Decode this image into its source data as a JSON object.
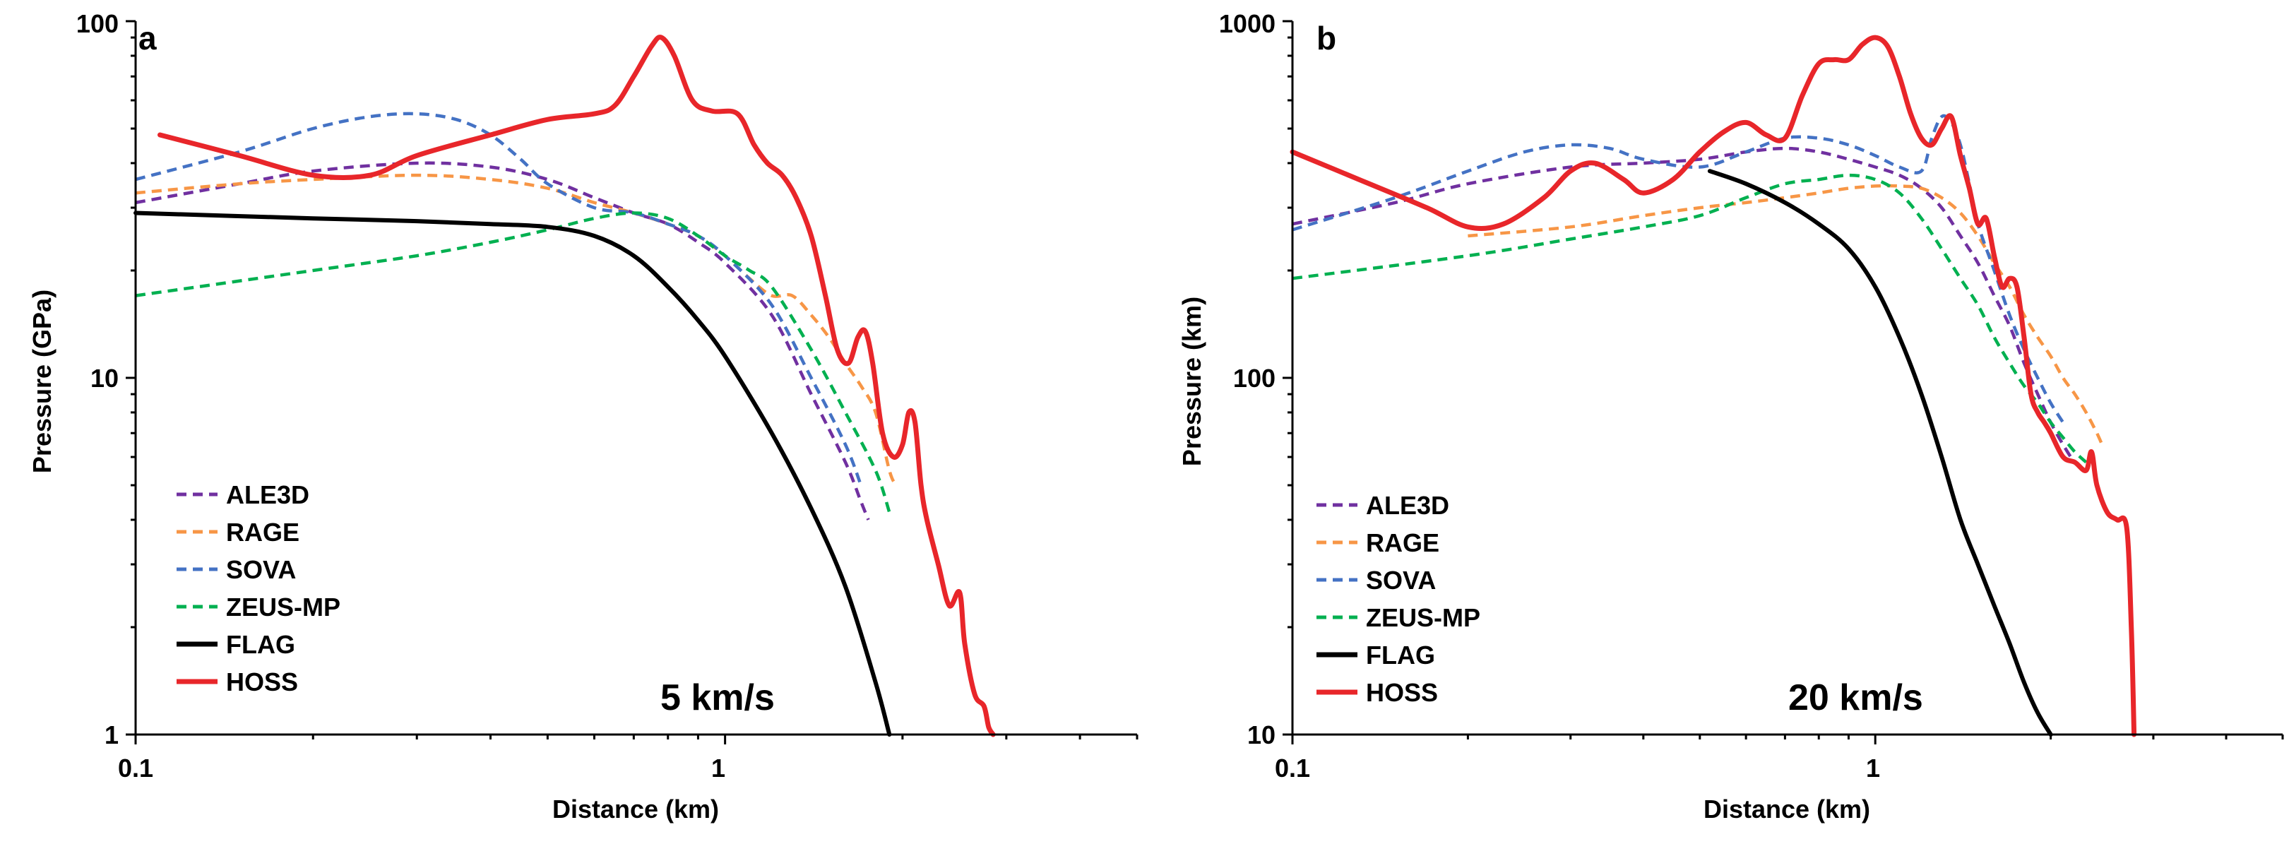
{
  "chart_data": [
    {
      "type": "line",
      "panel_label": "a",
      "annotation": "5 km/s",
      "xlabel": "Distance (km)",
      "ylabel": "Pressure (GPa)",
      "xscale": "log",
      "yscale": "log",
      "xlim": [
        0.1,
        5.0
      ],
      "ylim": [
        1,
        100
      ],
      "x_tick_labels": [
        "0.1",
        "1"
      ],
      "y_tick_labels": [
        "1",
        "10",
        "100"
      ],
      "legend_position": "bottom-left",
      "series": [
        {
          "name": "ALE3D",
          "color": "#7030A0",
          "dash": "dashed",
          "x": [
            0.1,
            0.15,
            0.2,
            0.3,
            0.4,
            0.5,
            0.6,
            0.7,
            0.8,
            0.9,
            1.0,
            1.2,
            1.4,
            1.6,
            1.7,
            1.75
          ],
          "y": [
            31,
            35,
            38,
            40,
            39,
            36,
            32,
            29,
            27,
            24,
            21,
            15,
            9,
            5.8,
            4.5,
            4.0
          ]
        },
        {
          "name": "RAGE",
          "color": "#F79646",
          "dash": "dashed",
          "x": [
            0.1,
            0.15,
            0.2,
            0.3,
            0.4,
            0.5,
            0.6,
            0.7,
            0.8,
            0.9,
            1.0,
            1.1,
            1.2,
            1.3,
            1.4,
            1.5,
            1.6,
            1.7,
            1.8,
            1.9,
            1.95
          ],
          "y": [
            33,
            35,
            36,
            37,
            36,
            34,
            31,
            29,
            27,
            25,
            22,
            19,
            17,
            17,
            15,
            13,
            11,
            9.5,
            8,
            5.5,
            5.0
          ]
        },
        {
          "name": "SOVA",
          "color": "#4472C4",
          "dash": "dashed",
          "x": [
            0.1,
            0.15,
            0.2,
            0.25,
            0.3,
            0.35,
            0.4,
            0.45,
            0.5,
            0.6,
            0.7,
            0.8,
            0.9,
            1.0,
            1.2,
            1.4,
            1.6,
            1.7
          ],
          "y": [
            36,
            43,
            50,
            54,
            55,
            53,
            48,
            41,
            35,
            30,
            29,
            27,
            25,
            22,
            16,
            10,
            6.5,
            5.0
          ]
        },
        {
          "name": "ZEUS-MP",
          "color": "#00B050",
          "dash": "dashed",
          "x": [
            0.1,
            0.2,
            0.3,
            0.4,
            0.5,
            0.6,
            0.7,
            0.8,
            0.9,
            1.0,
            1.1,
            1.2,
            1.4,
            1.6,
            1.8,
            1.9
          ],
          "y": [
            17,
            20,
            22,
            24,
            26,
            28,
            29,
            28,
            25,
            22,
            20,
            18,
            12,
            8,
            5.5,
            4.2
          ]
        },
        {
          "name": "FLAG",
          "color": "#000000",
          "dash": "solid",
          "x": [
            0.1,
            0.2,
            0.3,
            0.4,
            0.5,
            0.6,
            0.7,
            0.8,
            0.9,
            1.0,
            1.2,
            1.4,
            1.6,
            1.8,
            1.9
          ],
          "y": [
            29,
            28,
            27.5,
            27,
            26.5,
            25,
            22,
            18,
            14.5,
            11.5,
            7,
            4.3,
            2.6,
            1.4,
            1.0
          ]
        },
        {
          "name": "HOSS",
          "color": "#E8262A",
          "dash": "solid",
          "x": [
            0.11,
            0.15,
            0.2,
            0.25,
            0.3,
            0.4,
            0.5,
            0.6,
            0.65,
            0.7,
            0.75,
            0.78,
            0.82,
            0.88,
            0.95,
            1.05,
            1.12,
            1.18,
            1.25,
            1.32,
            1.4,
            1.48,
            1.55,
            1.62,
            1.68,
            1.73,
            1.78,
            1.85,
            1.93,
            2.0,
            2.05,
            2.1,
            2.15,
            2.2,
            2.3,
            2.4,
            2.5,
            2.55,
            2.65,
            2.75,
            2.8,
            2.85
          ],
          "y": [
            48,
            42,
            37,
            37,
            42,
            48,
            53,
            55,
            58,
            70,
            85,
            90,
            80,
            60,
            56,
            55,
            45,
            40,
            37,
            32,
            25,
            17,
            12,
            11,
            13,
            13.5,
            11,
            7,
            6,
            6.5,
            8,
            7.5,
            5,
            4,
            3,
            2.3,
            2.5,
            1.8,
            1.3,
            1.2,
            1.05,
            1.0
          ]
        }
      ]
    },
    {
      "type": "line",
      "panel_label": "b",
      "annotation": "20 km/s",
      "xlabel": "Distance (km)",
      "ylabel": "Pressure (km)",
      "xscale": "log",
      "yscale": "log",
      "xlim": [
        0.1,
        5.0
      ],
      "ylim": [
        10,
        1000
      ],
      "x_tick_labels": [
        "0.1",
        "1"
      ],
      "y_tick_labels": [
        "10",
        "100",
        "1000"
      ],
      "legend_position": "bottom-left",
      "series": [
        {
          "name": "ALE3D",
          "color": "#7030A0",
          "dash": "dashed",
          "x": [
            0.1,
            0.15,
            0.2,
            0.3,
            0.4,
            0.5,
            0.6,
            0.7,
            0.8,
            0.9,
            1.0,
            1.1,
            1.2,
            1.3,
            1.4,
            1.5,
            1.6,
            1.7,
            1.8,
            1.9,
            2.0,
            2.1,
            2.2,
            2.3
          ],
          "y": [
            270,
            310,
            350,
            390,
            400,
            410,
            430,
            440,
            430,
            410,
            390,
            370,
            340,
            300,
            250,
            210,
            170,
            140,
            110,
            90,
            75,
            65,
            58,
            55
          ]
        },
        {
          "name": "RAGE",
          "color": "#F79646",
          "dash": "dashed",
          "x": [
            0.2,
            0.3,
            0.4,
            0.5,
            0.6,
            0.7,
            0.8,
            0.9,
            1.0,
            1.1,
            1.2,
            1.3,
            1.4,
            1.5,
            1.6,
            1.7,
            1.8,
            1.9,
            2.0,
            2.1,
            2.2,
            2.3,
            2.4,
            2.45
          ],
          "y": [
            250,
            265,
            285,
            300,
            310,
            320,
            330,
            340,
            345,
            345,
            340,
            320,
            290,
            250,
            210,
            180,
            150,
            130,
            115,
            100,
            90,
            80,
            70,
            65
          ]
        },
        {
          "name": "SOVA",
          "color": "#4472C4",
          "dash": "dashed",
          "x": [
            0.1,
            0.15,
            0.2,
            0.25,
            0.3,
            0.35,
            0.4,
            0.5,
            0.6,
            0.7,
            0.8,
            0.9,
            1.0,
            1.1,
            1.2,
            1.25,
            1.3,
            1.35,
            1.4,
            1.45,
            1.5,
            1.6,
            1.7,
            1.8,
            1.9,
            2.0,
            2.1
          ],
          "y": [
            260,
            320,
            380,
            430,
            450,
            440,
            410,
            390,
            430,
            470,
            470,
            450,
            420,
            390,
            380,
            470,
            540,
            520,
            450,
            350,
            270,
            200,
            150,
            120,
            100,
            85,
            75
          ]
        },
        {
          "name": "ZEUS-MP",
          "color": "#00B050",
          "dash": "dashed",
          "x": [
            0.1,
            0.2,
            0.3,
            0.4,
            0.5,
            0.6,
            0.7,
            0.8,
            0.9,
            1.0,
            1.1,
            1.2,
            1.3,
            1.4,
            1.5,
            1.6,
            1.7,
            1.8,
            1.9,
            2.0,
            2.1,
            2.2,
            2.3
          ],
          "y": [
            190,
            220,
            245,
            265,
            285,
            320,
            350,
            360,
            370,
            360,
            330,
            280,
            230,
            190,
            160,
            130,
            110,
            95,
            85,
            75,
            68,
            62,
            58
          ]
        },
        {
          "name": "FLAG",
          "color": "#000000",
          "dash": "solid",
          "x": [
            0.52,
            0.6,
            0.7,
            0.8,
            0.9,
            1.0,
            1.1,
            1.2,
            1.3,
            1.4,
            1.5,
            1.6,
            1.7,
            1.8,
            1.9,
            2.0
          ],
          "y": [
            380,
            350,
            310,
            270,
            230,
            180,
            130,
            90,
            60,
            40,
            30,
            23,
            18,
            14,
            11.5,
            10
          ]
        },
        {
          "name": "HOSS",
          "color": "#E8262A",
          "dash": "solid",
          "x": [
            0.1,
            0.13,
            0.17,
            0.2,
            0.23,
            0.27,
            0.3,
            0.33,
            0.37,
            0.4,
            0.45,
            0.5,
            0.55,
            0.6,
            0.65,
            0.7,
            0.75,
            0.8,
            0.85,
            0.9,
            0.95,
            1.0,
            1.05,
            1.1,
            1.15,
            1.2,
            1.25,
            1.3,
            1.35,
            1.4,
            1.45,
            1.5,
            1.55,
            1.6,
            1.65,
            1.7,
            1.75,
            1.8,
            1.85,
            1.9,
            1.95,
            2.0,
            2.1,
            2.2,
            2.3,
            2.35,
            2.4,
            2.5,
            2.6,
            2.7,
            2.75,
            2.78
          ],
          "y": [
            430,
            360,
            300,
            265,
            270,
            320,
            380,
            400,
            360,
            330,
            360,
            430,
            490,
            520,
            480,
            470,
            620,
            760,
            780,
            780,
            860,
            900,
            850,
            700,
            550,
            470,
            450,
            500,
            540,
            420,
            340,
            270,
            280,
            220,
            180,
            190,
            180,
            130,
            90,
            80,
            75,
            70,
            60,
            58,
            55,
            62,
            50,
            42,
            40,
            38,
            20,
            10
          ]
        }
      ]
    }
  ]
}
